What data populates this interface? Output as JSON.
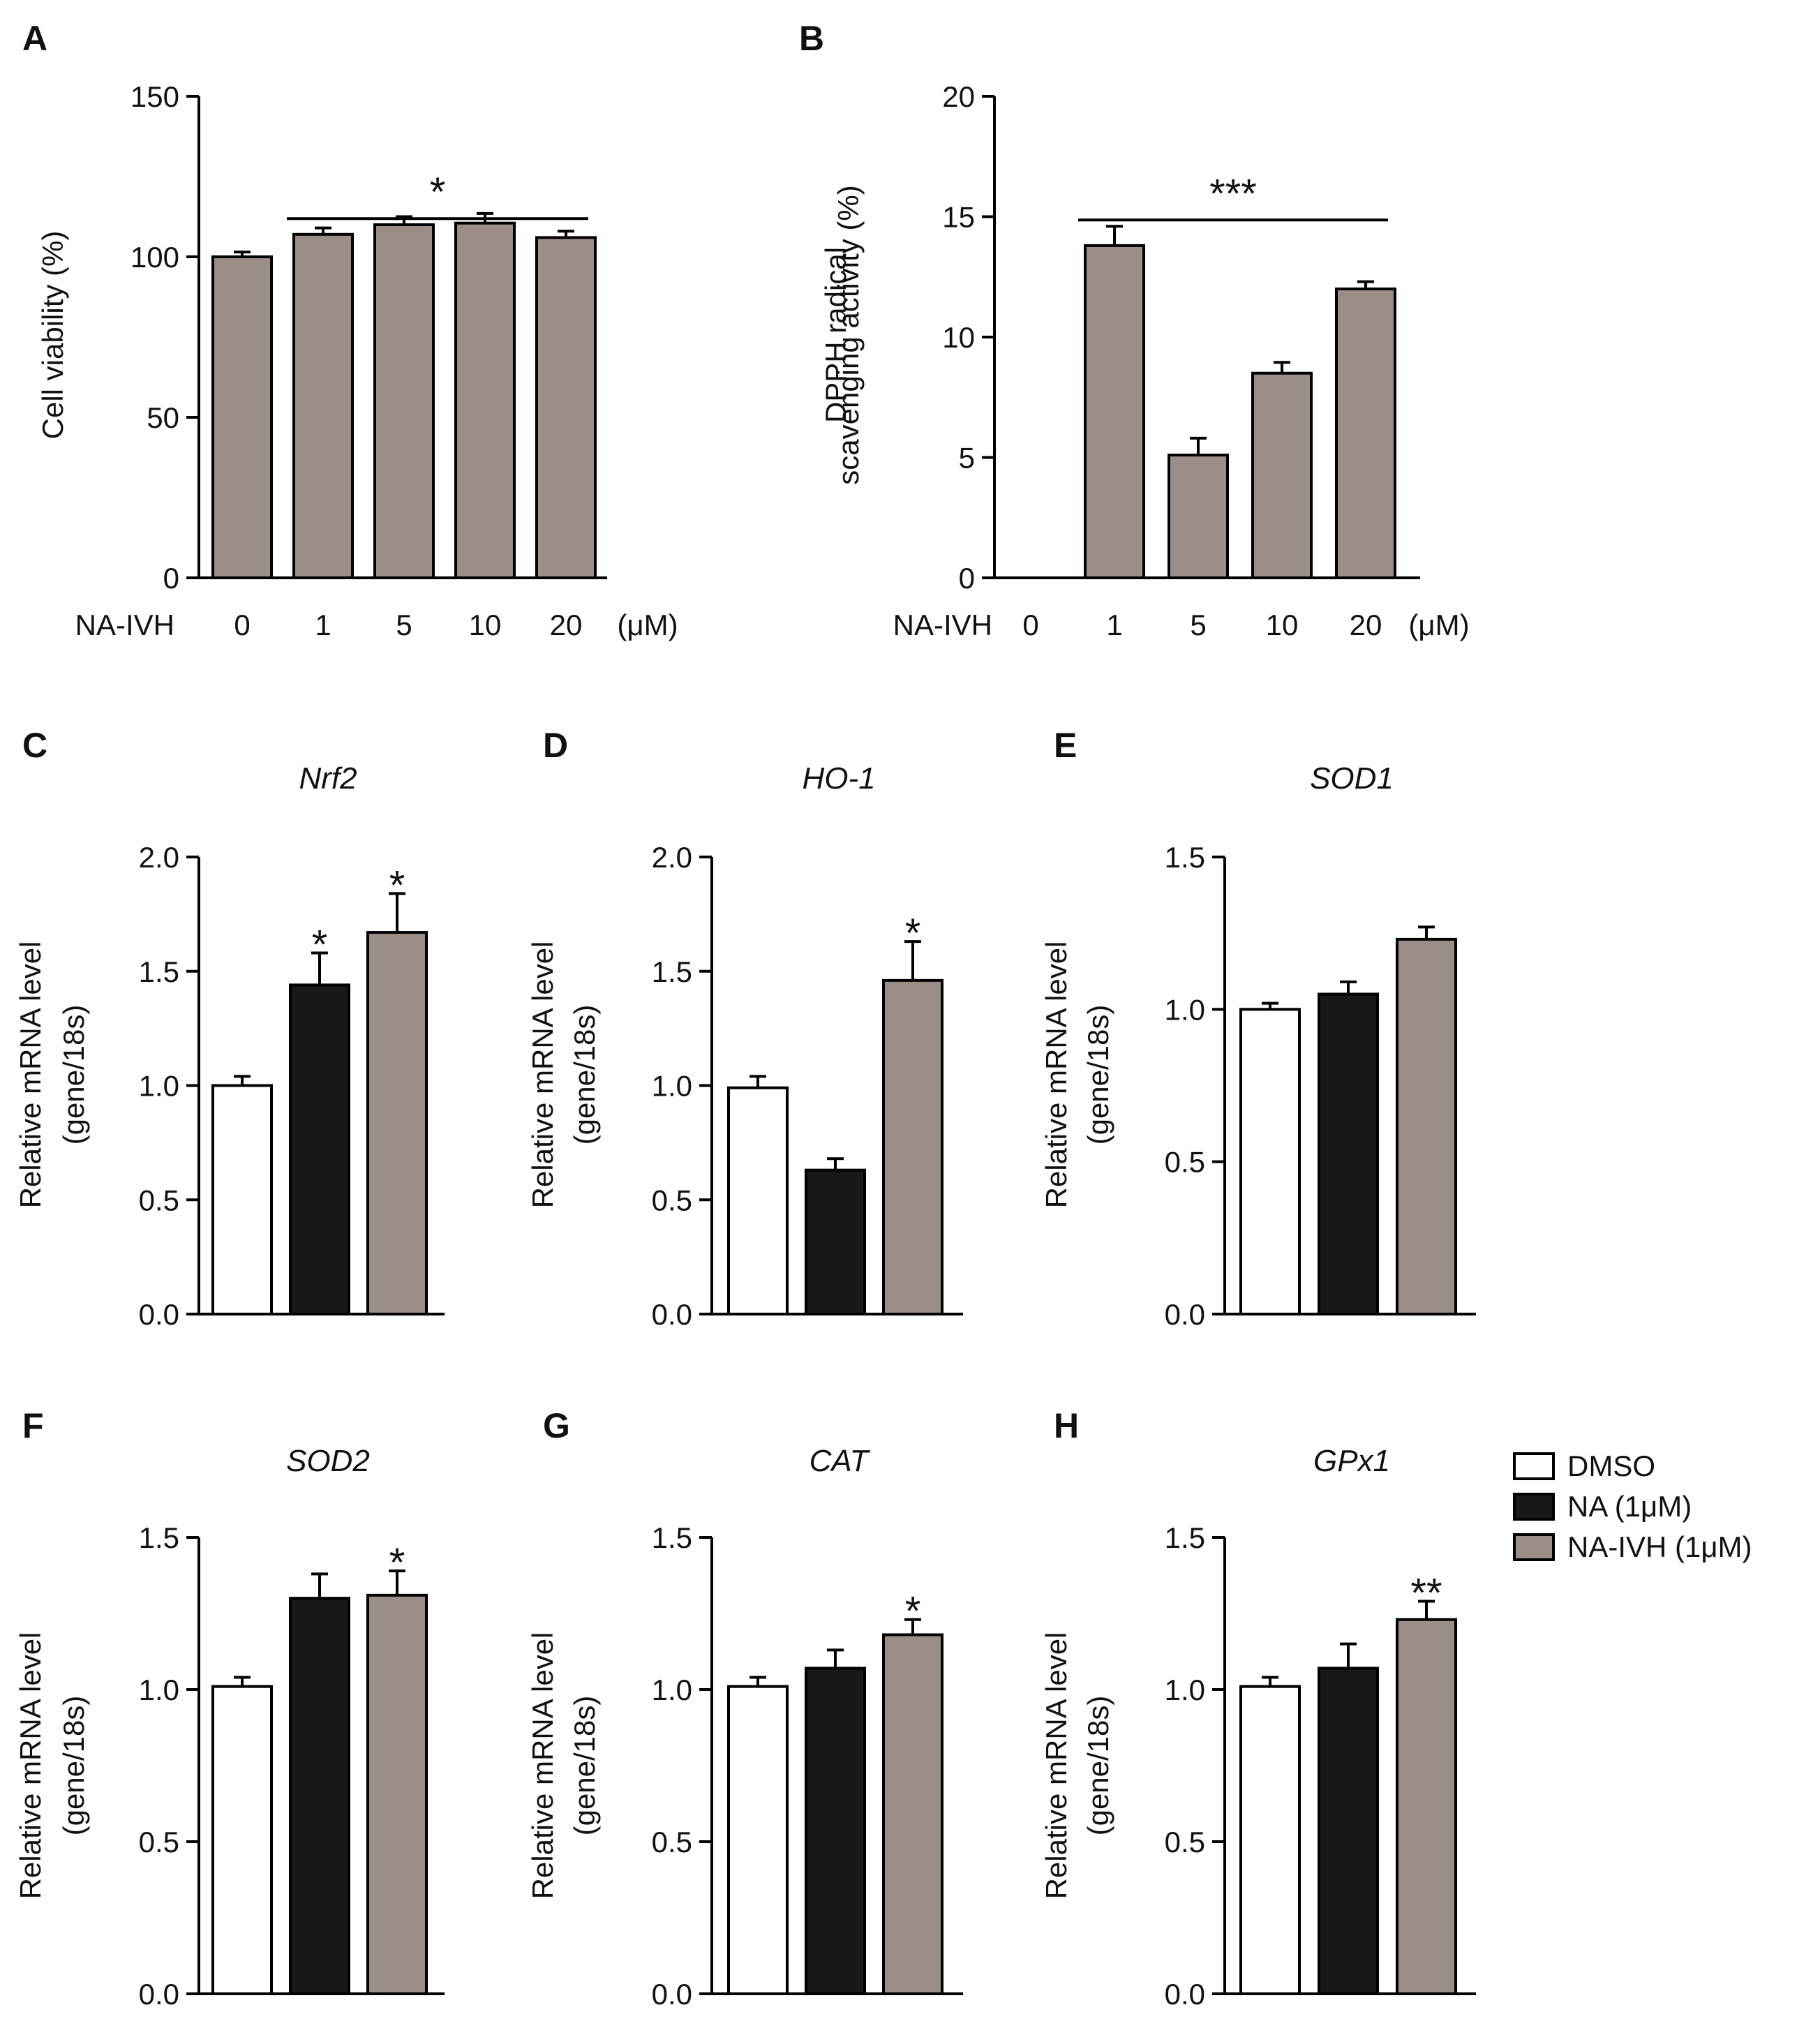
{
  "colors": {
    "dmso": "#ffffff",
    "na": "#1a1817",
    "nivh": "#9b8d88",
    "axis": "#000000"
  },
  "legend": [
    {
      "label": "DMSO",
      "color": "#ffffff"
    },
    {
      "label": "NA (1μM)",
      "color": "#1a1817"
    },
    {
      "label": "NA-IVH (1μM)",
      "color": "#9b8d88"
    }
  ],
  "chart_data": [
    {
      "panel": "A",
      "type": "bar",
      "title": "",
      "ylabel": "Cell viability (%)",
      "xlabel_prefix": "NA-IVH",
      "xunit": "(μM)",
      "categories": [
        "0",
        "1",
        "5",
        "10",
        "20"
      ],
      "values": [
        100,
        107,
        110,
        110.5,
        106
      ],
      "errors": [
        1.5,
        2,
        2.5,
        3,
        2
      ],
      "ylim": [
        0,
        150
      ],
      "yticks": [
        "0",
        "50",
        "100",
        "150"
      ],
      "significance": {
        "text": "*",
        "from": 1,
        "to": 4,
        "y": 138
      }
    },
    {
      "panel": "B",
      "type": "bar",
      "title": "",
      "ylabel": [
        "DPPH radical",
        "scavenging activity (%)"
      ],
      "xlabel_prefix": "NA-IVH",
      "xunit": "(μM)",
      "categories": [
        "0",
        "1",
        "5",
        "10",
        "20"
      ],
      "values": [
        0,
        13.8,
        5.1,
        8.5,
        12
      ],
      "errors": [
        0,
        0.8,
        0.7,
        0.45,
        0.3
      ],
      "ylim": [
        0,
        20
      ],
      "yticks": [
        "0",
        "5",
        "10",
        "15",
        "20"
      ],
      "significance": {
        "text": "***",
        "from": 1,
        "to": 4,
        "y": 16.6
      }
    },
    {
      "panel": "C",
      "type": "bar",
      "title": "Nrf2",
      "ylabel": [
        "Relative mRNA level",
        "(gene/18s)"
      ],
      "categories": [
        "DMSO",
        "NA (1μM)",
        "NA-IVH (1μM)"
      ],
      "values": [
        1.0,
        1.44,
        1.67
      ],
      "errors": [
        0.04,
        0.14,
        0.17
      ],
      "ylim": [
        0,
        2
      ],
      "yticks": [
        "0.0",
        "0.5",
        "1.0",
        "1.5",
        "2.0"
      ],
      "annotations": [
        "",
        "*",
        "*"
      ]
    },
    {
      "panel": "D",
      "type": "bar",
      "title": "HO-1",
      "ylabel": [
        "Relative mRNA level",
        "(gene/18s)"
      ],
      "categories": [
        "DMSO",
        "NA (1μM)",
        "NA-IVH (1μM)"
      ],
      "values": [
        0.99,
        0.63,
        1.46
      ],
      "errors": [
        0.05,
        0.05,
        0.17
      ],
      "ylim": [
        0,
        2
      ],
      "yticks": [
        "0.0",
        "0.5",
        "1.0",
        "1.5",
        "2.0"
      ],
      "annotations": [
        "",
        "",
        "*"
      ]
    },
    {
      "panel": "E",
      "type": "bar",
      "title": "SOD1",
      "ylabel": [
        "Relative mRNA level",
        "(gene/18s)"
      ],
      "categories": [
        "DMSO",
        "NA (1μM)",
        "NA-IVH (1μM)"
      ],
      "values": [
        1.0,
        1.05,
        1.23
      ],
      "errors": [
        0.02,
        0.04,
        0.04
      ],
      "ylim": [
        0,
        1.5
      ],
      "yticks": [
        "0.0",
        "0.5",
        "1.0",
        "1.5"
      ],
      "annotations": [
        "",
        "",
        ""
      ]
    },
    {
      "panel": "F",
      "type": "bar",
      "title": "SOD2",
      "ylabel": [
        "Relative mRNA level",
        "(gene/18s)"
      ],
      "categories": [
        "DMSO",
        "NA (1μM)",
        "NA-IVH (1μM)"
      ],
      "values": [
        1.01,
        1.3,
        1.31
      ],
      "errors": [
        0.03,
        0.08,
        0.08
      ],
      "ylim": [
        0,
        1.5
      ],
      "yticks": [
        "0.0",
        "0.5",
        "1.0",
        "1.5"
      ],
      "annotations": [
        "",
        "",
        "*"
      ]
    },
    {
      "panel": "G",
      "type": "bar",
      "title": "CAT",
      "ylabel": [
        "Relative mRNA level",
        "(gene/18s)"
      ],
      "categories": [
        "DMSO",
        "NA (1μM)",
        "NA-IVH (1μM)"
      ],
      "values": [
        1.01,
        1.07,
        1.18
      ],
      "errors": [
        0.03,
        0.06,
        0.05
      ],
      "ylim": [
        0,
        1.5
      ],
      "yticks": [
        "0.0",
        "0.5",
        "1.0",
        "1.5"
      ],
      "annotations": [
        "",
        "",
        "*"
      ]
    },
    {
      "panel": "H",
      "type": "bar",
      "title": "GPx1",
      "ylabel": [
        "Relative mRNA level",
        "(gene/18s)"
      ],
      "categories": [
        "DMSO",
        "NA (1μM)",
        "NA-IVH (1μM)"
      ],
      "values": [
        1.01,
        1.07,
        1.23
      ],
      "errors": [
        0.03,
        0.08,
        0.06
      ],
      "ylim": [
        0,
        1.5
      ],
      "yticks": [
        "0.0",
        "0.5",
        "1.0",
        "1.5"
      ],
      "annotations": [
        "",
        "",
        "**"
      ]
    }
  ]
}
